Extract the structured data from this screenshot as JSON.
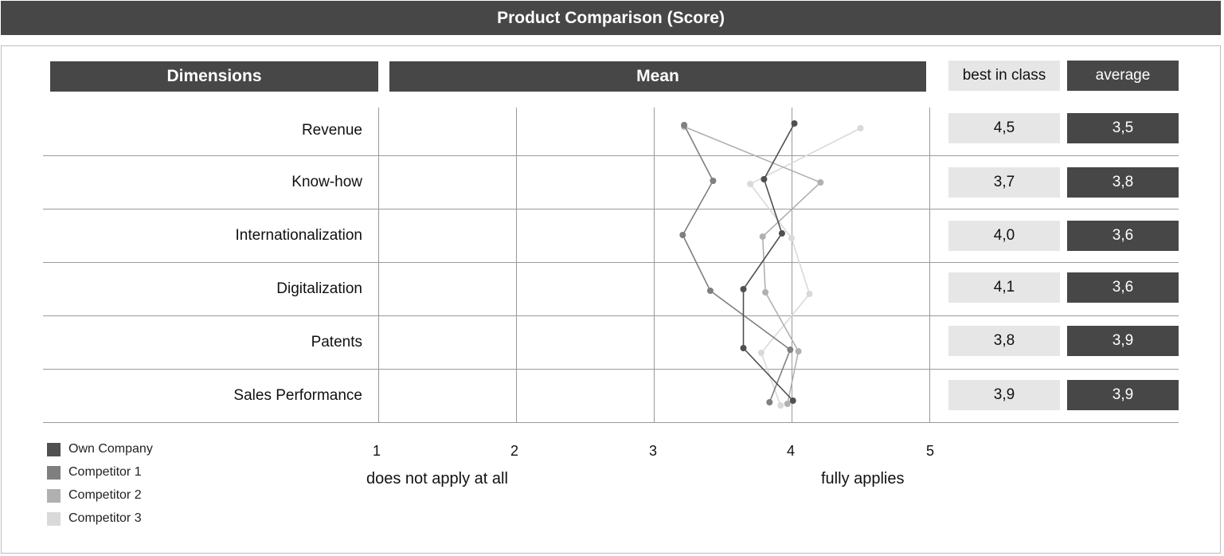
{
  "title": "Product Comparison  (Score)",
  "headers": {
    "dimensions": "Dimensions",
    "mean": "Mean",
    "best_in_class": "best in class",
    "average": "average"
  },
  "axis": {
    "ticks": [
      "1",
      "2",
      "3",
      "4",
      "5"
    ],
    "left_label": "does not apply at all",
    "right_label": "fully applies"
  },
  "colors": {
    "header": "#474747",
    "light_box": "#e6e6e6",
    "own_company": "#505050",
    "competitor_1": "#7f7f7f",
    "competitor_2": "#b0b0b0",
    "competitor_3": "#d9d9d9"
  },
  "chart_data": {
    "type": "line",
    "orientation": "horizontal-profile",
    "categories": [
      "Revenue",
      "Know-how",
      "Internationalization",
      "Digitalization",
      "Patents",
      "Sales Performance"
    ],
    "xlim": [
      1,
      5
    ],
    "series": [
      {
        "name": "Own Company",
        "values": [
          4.02,
          3.8,
          3.93,
          3.65,
          3.65,
          4.01
        ]
      },
      {
        "name": "Competitor 1",
        "values": [
          3.22,
          3.43,
          3.21,
          3.41,
          3.99,
          3.84
        ]
      },
      {
        "name": "Competitor 2",
        "values": [
          3.22,
          4.21,
          3.79,
          3.81,
          4.05,
          3.97
        ]
      },
      {
        "name": "Competitor 3",
        "values": [
          4.5,
          3.7,
          4.0,
          4.13,
          3.78,
          3.92
        ]
      }
    ],
    "best_in_class": [
      "4,5",
      "3,7",
      "4,0",
      "4,1",
      "3,8",
      "3,9"
    ],
    "average": [
      "3,5",
      "3,8",
      "3,6",
      "3,6",
      "3,9",
      "3,9"
    ],
    "legend_position": "bottom-left",
    "grid": true
  }
}
